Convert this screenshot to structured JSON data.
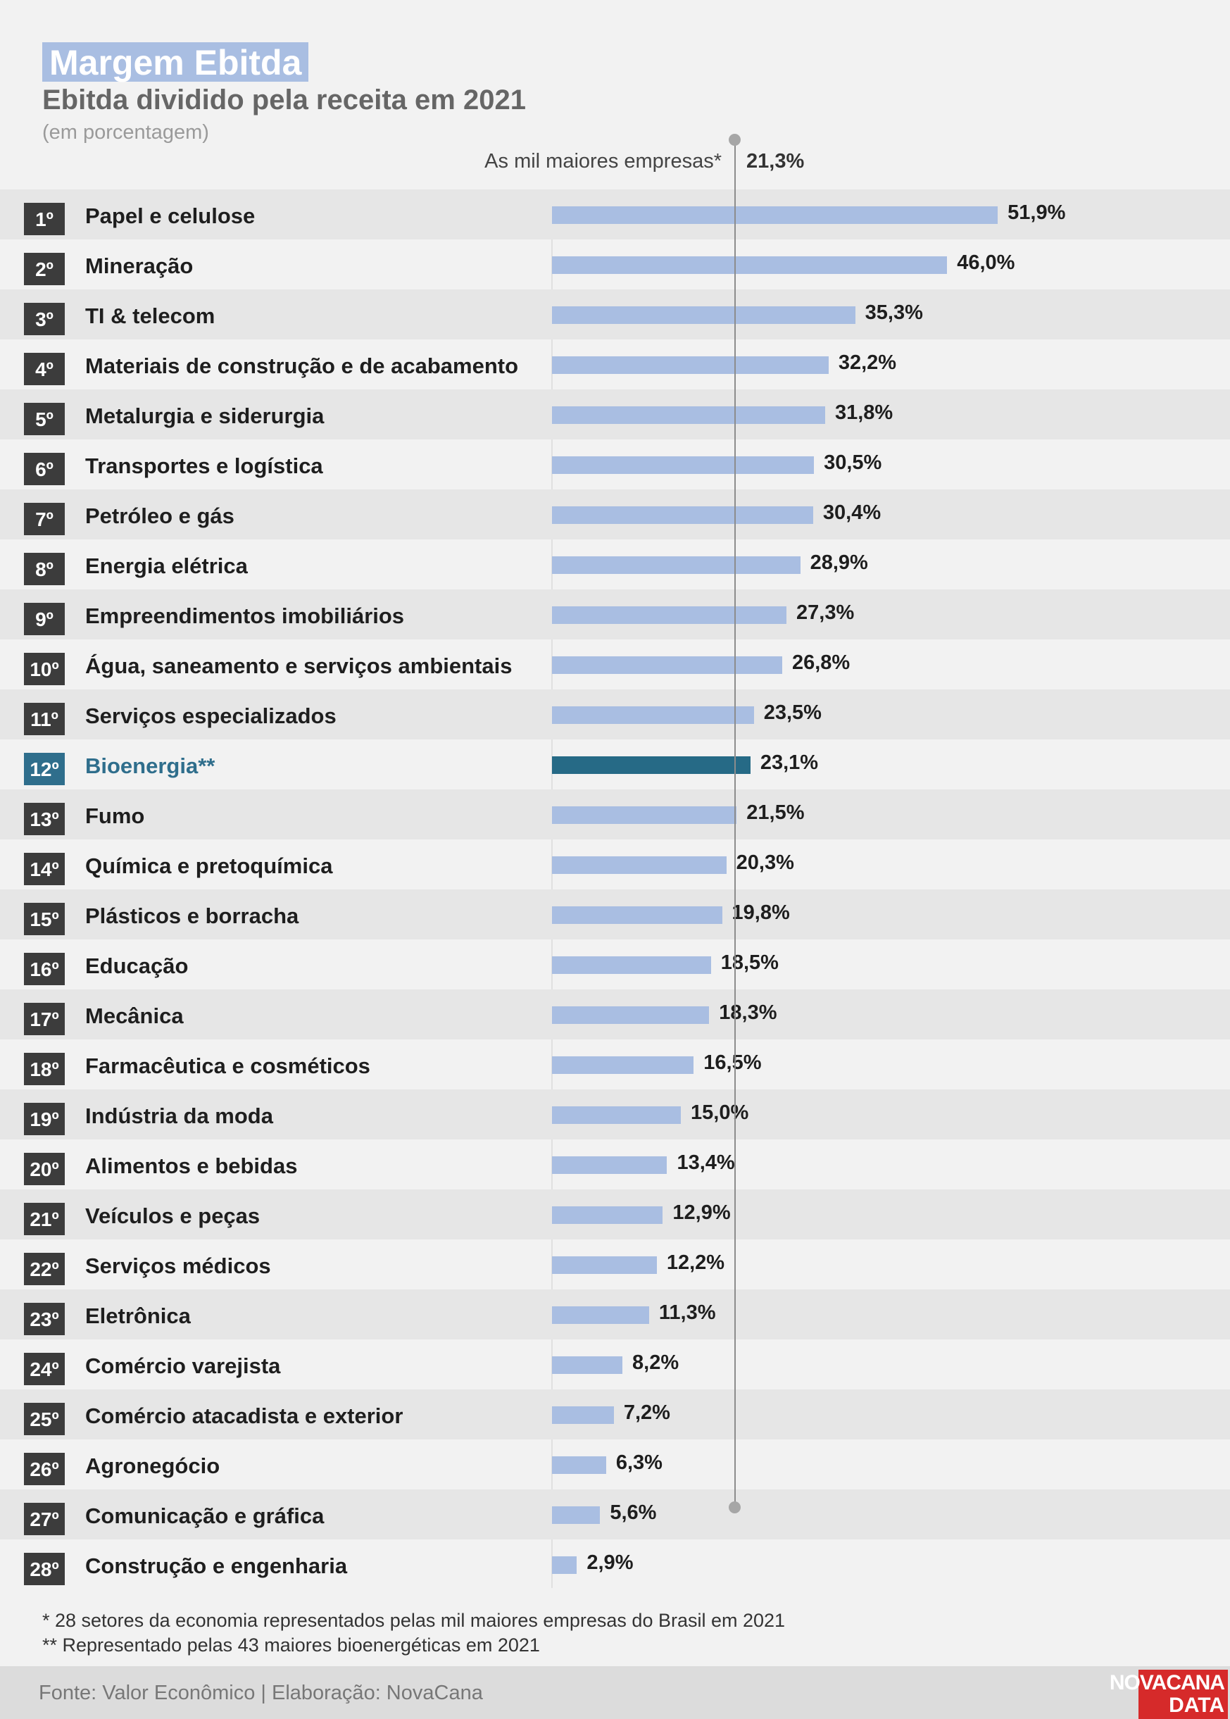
{
  "title": "Margem Ebitda",
  "subtitle": "Ebitda dividido pela receita em 2021",
  "unit_note": "(em porcentagem)",
  "reference": {
    "label": "As mil maiores empresas*",
    "value_text": "21,3%",
    "value": 21.3
  },
  "footnotes": [
    "* 28 setores da economia representados pelas mil maiores empresas do Brasil em 2021",
    "** Representado pelas 43 maiores bioenergéticas em 2021"
  ],
  "source": "Fonte: Valor Econômico | Elaboração: NovaCana",
  "logo": {
    "line1": "NOVACANA",
    "line2": "DATA"
  },
  "colors": {
    "bar": "#a9bee2",
    "highlight_bar": "#266a86",
    "highlight_text": "#2f6e8c",
    "rank_box": "#3c3c3c",
    "logo": "#d62a2a"
  },
  "chart_data": {
    "type": "bar",
    "orientation": "horizontal",
    "xlim": [
      0,
      60
    ],
    "highlight_index": 11,
    "categories": [
      {
        "rank": "1º",
        "name": "Papel e celulose",
        "value": 51.9,
        "label": "51,9%"
      },
      {
        "rank": "2º",
        "name": "Mineração",
        "value": 46.0,
        "label": "46,0%"
      },
      {
        "rank": "3º",
        "name": "TI & telecom",
        "value": 35.3,
        "label": "35,3%"
      },
      {
        "rank": "4º",
        "name": "Materiais de construção e de acabamento",
        "value": 32.2,
        "label": "32,2%"
      },
      {
        "rank": "5º",
        "name": "Metalurgia e siderurgia",
        "value": 31.8,
        "label": "31,8%"
      },
      {
        "rank": "6º",
        "name": "Transportes e logística",
        "value": 30.5,
        "label": "30,5%"
      },
      {
        "rank": "7º",
        "name": "Petróleo e gás",
        "value": 30.4,
        "label": "30,4%"
      },
      {
        "rank": "8º",
        "name": "Energia elétrica",
        "value": 28.9,
        "label": "28,9%"
      },
      {
        "rank": "9º",
        "name": "Empreendimentos imobiliários",
        "value": 27.3,
        "label": "27,3%"
      },
      {
        "rank": "10º",
        "name": "Água, saneamento e serviços ambientais",
        "value": 26.8,
        "label": "26,8%"
      },
      {
        "rank": "11º",
        "name": "Serviços especializados",
        "value": 23.5,
        "label": "23,5%"
      },
      {
        "rank": "12º",
        "name": "Bioenergia**",
        "value": 23.1,
        "label": "23,1%"
      },
      {
        "rank": "13º",
        "name": "Fumo",
        "value": 21.5,
        "label": "21,5%"
      },
      {
        "rank": "14º",
        "name": "Química e pretoquímica",
        "value": 20.3,
        "label": "20,3%"
      },
      {
        "rank": "15º",
        "name": "Plásticos e borracha",
        "value": 19.8,
        "label": "19,8%"
      },
      {
        "rank": "16º",
        "name": "Educação",
        "value": 18.5,
        "label": "18,5%"
      },
      {
        "rank": "17º",
        "name": "Mecânica",
        "value": 18.3,
        "label": "18,3%"
      },
      {
        "rank": "18º",
        "name": "Farmacêutica e cosméticos",
        "value": 16.5,
        "label": "16,5%"
      },
      {
        "rank": "19º",
        "name": "Indústria da moda",
        "value": 15.0,
        "label": "15,0%"
      },
      {
        "rank": "20º",
        "name": "Alimentos e bebidas",
        "value": 13.4,
        "label": "13,4%"
      },
      {
        "rank": "21º",
        "name": "Veículos e peças",
        "value": 12.9,
        "label": "12,9%"
      },
      {
        "rank": "22º",
        "name": "Serviços médicos",
        "value": 12.2,
        "label": "12,2%"
      },
      {
        "rank": "23º",
        "name": "Eletrônica",
        "value": 11.3,
        "label": "11,3%"
      },
      {
        "rank": "24º",
        "name": "Comércio varejista",
        "value": 8.2,
        "label": "8,2%"
      },
      {
        "rank": "25º",
        "name": "Comércio atacadista e exterior",
        "value": 7.2,
        "label": "7,2%"
      },
      {
        "rank": "26º",
        "name": "Agronegócio",
        "value": 6.3,
        "label": "6,3%"
      },
      {
        "rank": "27º",
        "name": "Comunicação e gráfica",
        "value": 5.6,
        "label": "5,6%"
      },
      {
        "rank": "28º",
        "name": "Construção e engenharia",
        "value": 2.9,
        "label": "2,9%"
      }
    ]
  }
}
